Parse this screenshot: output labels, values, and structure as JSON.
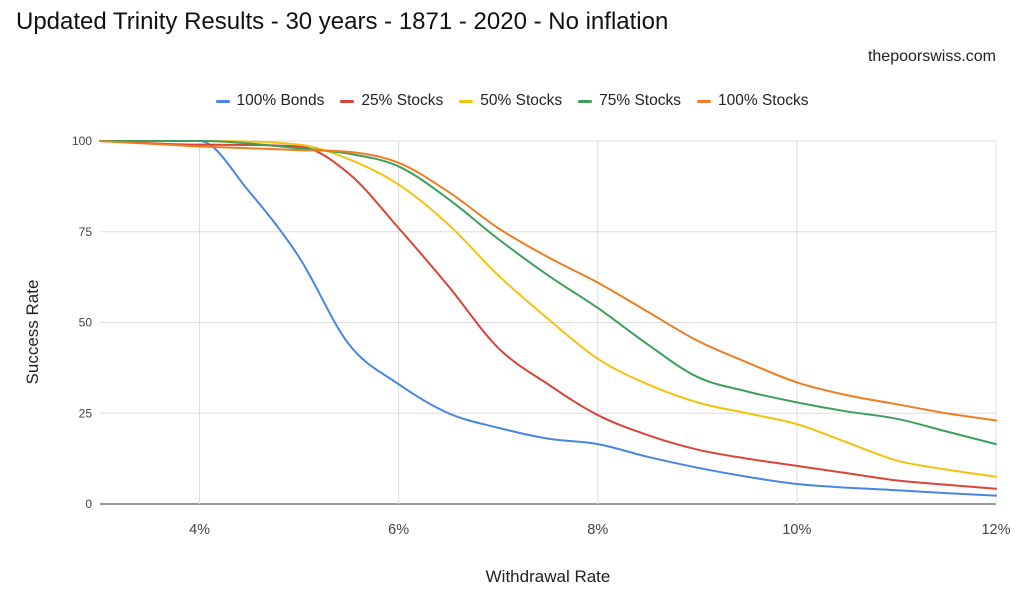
{
  "title": "Updated Trinity Results - 30 years - 1871 - 2020 - No inflation",
  "source": "thepoorswiss.com",
  "chart_data": {
    "type": "line",
    "title": "Updated Trinity Results - 30 years - 1871 - 2020 - No inflation",
    "xlabel": "Withdrawal Rate",
    "ylabel": "Success Rate",
    "xlim": [
      3,
      12
    ],
    "ylim": [
      0,
      100
    ],
    "x_ticks": [
      4,
      6,
      8,
      10,
      12
    ],
    "x_tick_labels": [
      "4%",
      "6%",
      "8%",
      "10%",
      "12%"
    ],
    "y_ticks": [
      0,
      25,
      50,
      75,
      100
    ],
    "y_tick_labels": [
      "0",
      "25",
      "50",
      "75",
      "100"
    ],
    "grid": true,
    "legend_position": "top",
    "series": [
      {
        "name": "100% Bonds",
        "color": "#4a86e0",
        "x": [
          3,
          4,
          4.5,
          5,
          5.5,
          6,
          6.5,
          7,
          7.5,
          8,
          8.5,
          9,
          9.5,
          10,
          10.5,
          11,
          11.5,
          12
        ],
        "y": [
          100,
          100,
          86,
          68,
          44,
          33,
          25,
          21,
          18,
          16.5,
          13,
          10,
          7.5,
          5.5,
          4.5,
          3.8,
          3,
          2.3
        ]
      },
      {
        "name": "25% Stocks",
        "color": "#db4437",
        "x": [
          3,
          4,
          5,
          5.5,
          6,
          6.5,
          7,
          7.5,
          8,
          8.5,
          9,
          9.5,
          10,
          10.5,
          11,
          11.5,
          12
        ],
        "y": [
          100,
          99,
          98.5,
          91,
          76,
          60,
          43,
          33,
          24.5,
          19,
          15,
          12.5,
          10.5,
          8.5,
          6.5,
          5.3,
          4.2
        ]
      },
      {
        "name": "50% Stocks",
        "color": "#f4c20d",
        "x": [
          3,
          4,
          5,
          5.5,
          6,
          6.5,
          7,
          7.5,
          8,
          8.5,
          9,
          9.5,
          10,
          10.5,
          11,
          11.5,
          12
        ],
        "y": [
          100,
          100,
          99,
          95,
          88,
          77,
          63,
          51,
          40,
          33,
          28,
          25,
          22,
          17,
          12,
          9.5,
          7.5
        ]
      },
      {
        "name": "75% Stocks",
        "color": "#3c9f5a",
        "x": [
          3,
          4,
          5,
          5.5,
          6,
          6.5,
          7,
          7.5,
          8,
          8.5,
          9,
          9.5,
          10,
          10.5,
          11,
          11.5,
          12
        ],
        "y": [
          100,
          100,
          98,
          96.5,
          93,
          84,
          73,
          63,
          54,
          44,
          35,
          31,
          28,
          25.5,
          23.5,
          20,
          16.5
        ]
      },
      {
        "name": "100% Stocks",
        "color": "#ee7d22",
        "x": [
          3,
          4,
          5,
          5.5,
          6,
          6.5,
          7,
          7.5,
          8,
          8.5,
          9,
          9.5,
          10,
          10.5,
          11,
          11.5,
          12
        ],
        "y": [
          100,
          98.5,
          97.5,
          97,
          94,
          86,
          76,
          68,
          61,
          53,
          45,
          39,
          33.5,
          30,
          27.5,
          25,
          23
        ]
      }
    ]
  }
}
